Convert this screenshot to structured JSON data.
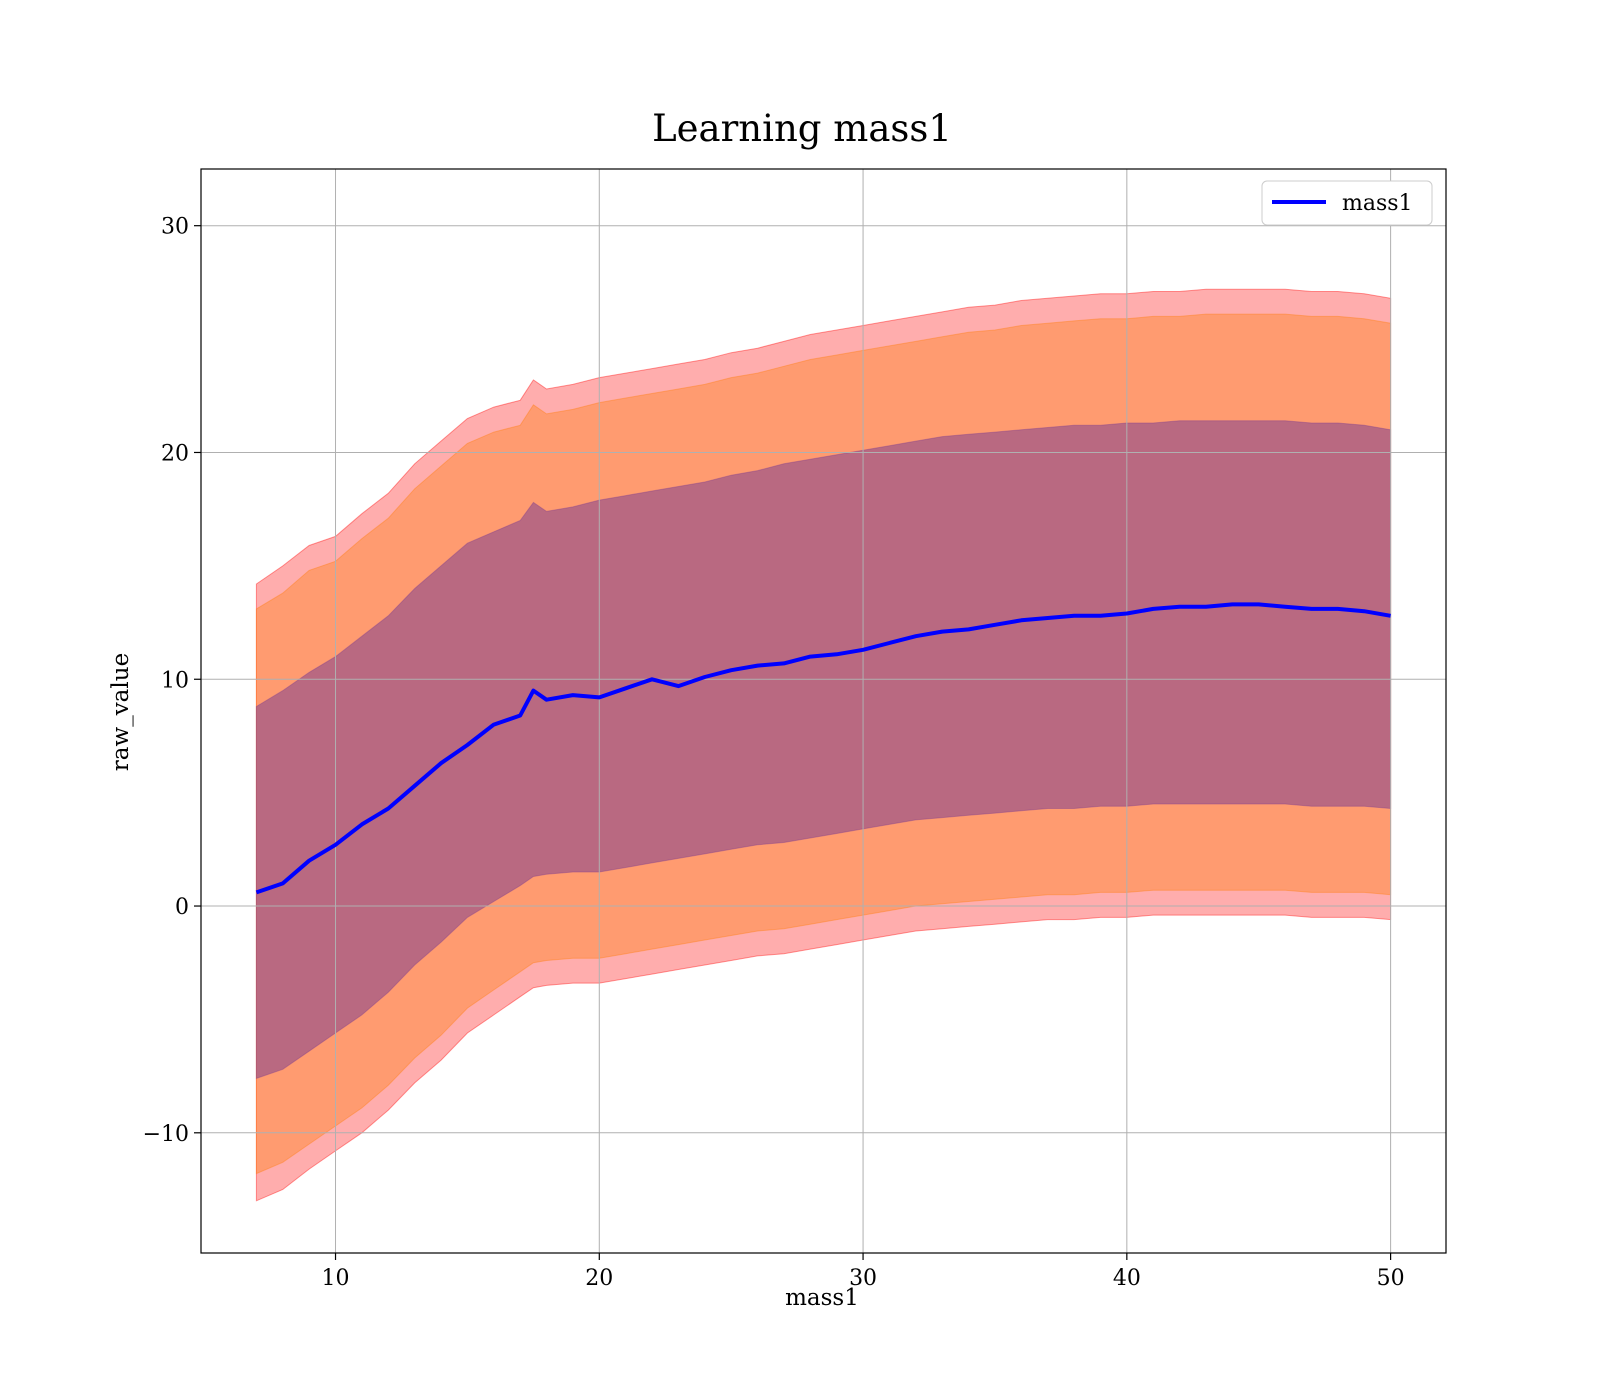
{
  "chart_data": {
    "type": "area",
    "title": "Learning mass1",
    "xlabel": "mass1",
    "ylabel": "raw_value",
    "xlim": [
      4.9,
      52.1
    ],
    "ylim": [
      -15.3,
      32.5
    ],
    "xticks": [
      10,
      20,
      30,
      40,
      50
    ],
    "yticks": [
      -10,
      0,
      10,
      20,
      30
    ],
    "xtick_labels": [
      "10",
      "20",
      "30",
      "40",
      "50"
    ],
    "ytick_labels": [
      "−10",
      "0",
      "10",
      "20",
      "30"
    ],
    "grid": true,
    "legend": {
      "position": "top-right",
      "entries": [
        "mass1"
      ]
    },
    "colors": {
      "line": "#0000ff",
      "band_outer": "#ff0000",
      "band_middle": "#ff7f0e",
      "band_inner": "#7f3f8f",
      "grid": "#b0b0b0"
    },
    "series": [
      {
        "name": "mass1",
        "x": [
          7,
          8,
          9,
          10,
          11,
          12,
          13,
          14,
          15,
          16,
          17,
          17.5,
          18,
          19,
          20,
          21,
          22,
          23,
          24,
          25,
          26,
          27,
          28,
          29,
          30,
          31,
          32,
          33,
          34,
          35,
          36,
          37,
          38,
          39,
          40,
          41,
          42,
          43,
          44,
          45,
          46,
          47,
          48,
          49,
          50
        ],
        "y": [
          0.6,
          1.0,
          2.0,
          2.7,
          3.6,
          4.3,
          5.3,
          6.3,
          7.1,
          8.0,
          8.4,
          9.5,
          9.1,
          9.3,
          9.2,
          9.6,
          10.0,
          9.7,
          10.1,
          10.4,
          10.6,
          10.7,
          11.0,
          11.1,
          11.3,
          11.6,
          11.9,
          12.1,
          12.2,
          12.4,
          12.6,
          12.7,
          12.8,
          12.8,
          12.9,
          13.1,
          13.2,
          13.2,
          13.3,
          13.3,
          13.2,
          13.1,
          13.1,
          13.0,
          12.8
        ]
      },
      {
        "name": "",
        "band": "outer",
        "x": [
          7,
          8,
          9,
          10,
          11,
          12,
          13,
          14,
          15,
          16,
          17,
          17.5,
          18,
          19,
          20,
          21,
          22,
          23,
          24,
          25,
          26,
          27,
          28,
          29,
          30,
          31,
          32,
          33,
          34,
          35,
          36,
          37,
          38,
          39,
          40,
          41,
          42,
          43,
          44,
          45,
          46,
          47,
          48,
          49,
          50
        ],
        "upper": [
          14.2,
          15.0,
          15.9,
          16.3,
          17.3,
          18.2,
          19.5,
          20.5,
          21.5,
          22.0,
          22.3,
          23.2,
          22.8,
          23.0,
          23.3,
          23.5,
          23.7,
          23.9,
          24.1,
          24.4,
          24.6,
          24.9,
          25.2,
          25.4,
          25.6,
          25.8,
          26.0,
          26.2,
          26.4,
          26.5,
          26.7,
          26.8,
          26.9,
          27.0,
          27.0,
          27.1,
          27.1,
          27.2,
          27.2,
          27.2,
          27.2,
          27.1,
          27.1,
          27.0,
          26.8
        ],
        "lower": [
          -13.0,
          -12.5,
          -11.6,
          -10.8,
          -10.0,
          -9.0,
          -7.8,
          -6.8,
          -5.6,
          -4.8,
          -4.0,
          -3.6,
          -3.5,
          -3.4,
          -3.4,
          -3.2,
          -3.0,
          -2.8,
          -2.6,
          -2.4,
          -2.2,
          -2.1,
          -1.9,
          -1.7,
          -1.5,
          -1.3,
          -1.1,
          -1.0,
          -0.9,
          -0.8,
          -0.7,
          -0.6,
          -0.6,
          -0.5,
          -0.5,
          -0.4,
          -0.4,
          -0.4,
          -0.4,
          -0.4,
          -0.4,
          -0.5,
          -0.5,
          -0.5,
          -0.6
        ]
      },
      {
        "name": "",
        "band": "middle",
        "x": [
          7,
          8,
          9,
          10,
          11,
          12,
          13,
          14,
          15,
          16,
          17,
          17.5,
          18,
          19,
          20,
          21,
          22,
          23,
          24,
          25,
          26,
          27,
          28,
          29,
          30,
          31,
          32,
          33,
          34,
          35,
          36,
          37,
          38,
          39,
          40,
          41,
          42,
          43,
          44,
          45,
          46,
          47,
          48,
          49,
          50
        ],
        "upper": [
          13.1,
          13.8,
          14.8,
          15.2,
          16.2,
          17.1,
          18.4,
          19.4,
          20.4,
          20.9,
          21.2,
          22.1,
          21.7,
          21.9,
          22.2,
          22.4,
          22.6,
          22.8,
          23.0,
          23.3,
          23.5,
          23.8,
          24.1,
          24.3,
          24.5,
          24.7,
          24.9,
          25.1,
          25.3,
          25.4,
          25.6,
          25.7,
          25.8,
          25.9,
          25.9,
          26.0,
          26.0,
          26.1,
          26.1,
          26.1,
          26.1,
          26.0,
          26.0,
          25.9,
          25.7
        ],
        "lower": [
          -11.8,
          -11.3,
          -10.5,
          -9.7,
          -8.9,
          -7.9,
          -6.7,
          -5.7,
          -4.5,
          -3.7,
          -2.9,
          -2.5,
          -2.4,
          -2.3,
          -2.3,
          -2.1,
          -1.9,
          -1.7,
          -1.5,
          -1.3,
          -1.1,
          -1.0,
          -0.8,
          -0.6,
          -0.4,
          -0.2,
          0.0,
          0.1,
          0.2,
          0.3,
          0.4,
          0.5,
          0.5,
          0.6,
          0.6,
          0.7,
          0.7,
          0.7,
          0.7,
          0.7,
          0.7,
          0.6,
          0.6,
          0.6,
          0.5
        ]
      },
      {
        "name": "",
        "band": "inner",
        "x": [
          7,
          8,
          9,
          10,
          11,
          12,
          13,
          14,
          15,
          16,
          17,
          17.5,
          18,
          19,
          20,
          21,
          22,
          23,
          24,
          25,
          26,
          27,
          28,
          29,
          30,
          31,
          32,
          33,
          34,
          35,
          36,
          37,
          38,
          39,
          40,
          41,
          42,
          43,
          44,
          45,
          46,
          47,
          48,
          49,
          50
        ],
        "upper": [
          8.8,
          9.5,
          10.3,
          11.0,
          11.9,
          12.8,
          14.0,
          15.0,
          16.0,
          16.5,
          17.0,
          17.8,
          17.4,
          17.6,
          17.9,
          18.1,
          18.3,
          18.5,
          18.7,
          19.0,
          19.2,
          19.5,
          19.7,
          19.9,
          20.1,
          20.3,
          20.5,
          20.7,
          20.8,
          20.9,
          21.0,
          21.1,
          21.2,
          21.2,
          21.3,
          21.3,
          21.4,
          21.4,
          21.4,
          21.4,
          21.4,
          21.3,
          21.3,
          21.2,
          21.0
        ],
        "lower": [
          -7.6,
          -7.2,
          -6.4,
          -5.6,
          -4.8,
          -3.8,
          -2.6,
          -1.6,
          -0.5,
          0.2,
          0.9,
          1.3,
          1.4,
          1.5,
          1.5,
          1.7,
          1.9,
          2.1,
          2.3,
          2.5,
          2.7,
          2.8,
          3.0,
          3.2,
          3.4,
          3.6,
          3.8,
          3.9,
          4.0,
          4.1,
          4.2,
          4.3,
          4.3,
          4.4,
          4.4,
          4.5,
          4.5,
          4.5,
          4.5,
          4.5,
          4.5,
          4.4,
          4.4,
          4.4,
          4.3
        ]
      }
    ]
  }
}
